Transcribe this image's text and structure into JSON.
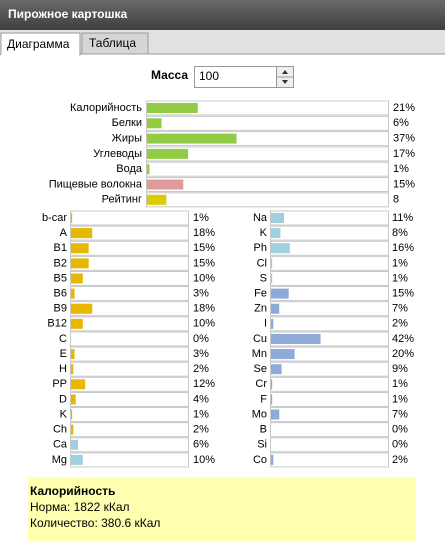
{
  "window": {
    "title": "Пирожное картошка"
  },
  "tabs": [
    "Диаграмма",
    "Таблица"
  ],
  "mass": {
    "label": "Масса",
    "value": "100"
  },
  "chart_data": [
    {
      "type": "bar",
      "orientation": "horizontal",
      "categories": [
        "Калорийность",
        "Белки",
        "Жиры",
        "Углеводы",
        "Вода",
        "Пищевые волокна",
        "Рейтинг"
      ],
      "values": [
        21,
        6,
        37,
        17,
        1,
        15,
        8
      ],
      "value_labels": [
        "21%",
        "6%",
        "37%",
        "17%",
        "1%",
        "15%",
        "8"
      ],
      "colors": [
        "#92cc44",
        "#92cc44",
        "#92cc44",
        "#92cc44",
        "#92cc44",
        "#e09a9a",
        "#dccb00"
      ],
      "xlim": [
        0,
        100
      ]
    },
    {
      "type": "bar",
      "orientation": "horizontal",
      "categories": [
        "b-car",
        "A",
        "B1",
        "B2",
        "B5",
        "B6",
        "B9",
        "B12",
        "C",
        "E",
        "H",
        "PP",
        "D",
        "K",
        "Ch",
        "Ca",
        "Mg"
      ],
      "values": [
        1,
        18,
        15,
        15,
        10,
        3,
        18,
        10,
        0,
        3,
        2,
        12,
        4,
        1,
        2,
        6,
        10
      ],
      "value_labels": [
        "1%",
        "18%",
        "15%",
        "15%",
        "10%",
        "3%",
        "18%",
        "10%",
        "0%",
        "3%",
        "2%",
        "12%",
        "4%",
        "1%",
        "2%",
        "6%",
        "10%"
      ],
      "colors": [
        "#e8b800",
        "#e8b800",
        "#e8b800",
        "#e8b800",
        "#e8b800",
        "#e8b800",
        "#e8b800",
        "#e8b800",
        "#e8b800",
        "#e8b800",
        "#e8b800",
        "#e8b800",
        "#e8b800",
        "#e8b800",
        "#e8b800",
        "#9fd0e0",
        "#9fd0e0"
      ],
      "xlim": [
        0,
        100
      ]
    },
    {
      "type": "bar",
      "orientation": "horizontal",
      "categories": [
        "Na",
        "K",
        "Ph",
        "Cl",
        "S",
        "Fe",
        "Zn",
        "I",
        "Cu",
        "Mn",
        "Se",
        "Cr",
        "F",
        "Mo",
        "B",
        "Si",
        "Co"
      ],
      "values": [
        11,
        8,
        16,
        1,
        1,
        15,
        7,
        2,
        42,
        20,
        9,
        1,
        1,
        7,
        0,
        0,
        2
      ],
      "value_labels": [
        "11%",
        "8%",
        "16%",
        "1%",
        "1%",
        "15%",
        "7%",
        "2%",
        "42%",
        "20%",
        "9%",
        "1%",
        "1%",
        "7%",
        "0%",
        "0%",
        "2%"
      ],
      "colors": [
        "#9fd0e0",
        "#9fd0e0",
        "#9fd0e0",
        "#9fd0e0",
        "#9fd0e0",
        "#8eaad8",
        "#8eaad8",
        "#8eaad8",
        "#8eaad8",
        "#8eaad8",
        "#8eaad8",
        "#8eaad8",
        "#8eaad8",
        "#8eaad8",
        "#8eaad8",
        "#8eaad8",
        "#8eaad8"
      ],
      "xlim": [
        0,
        100
      ]
    }
  ],
  "info": {
    "title": "Калорийность",
    "lines": [
      "Норма: 1822 кКал",
      "Количество: 380.6 кКал"
    ]
  }
}
